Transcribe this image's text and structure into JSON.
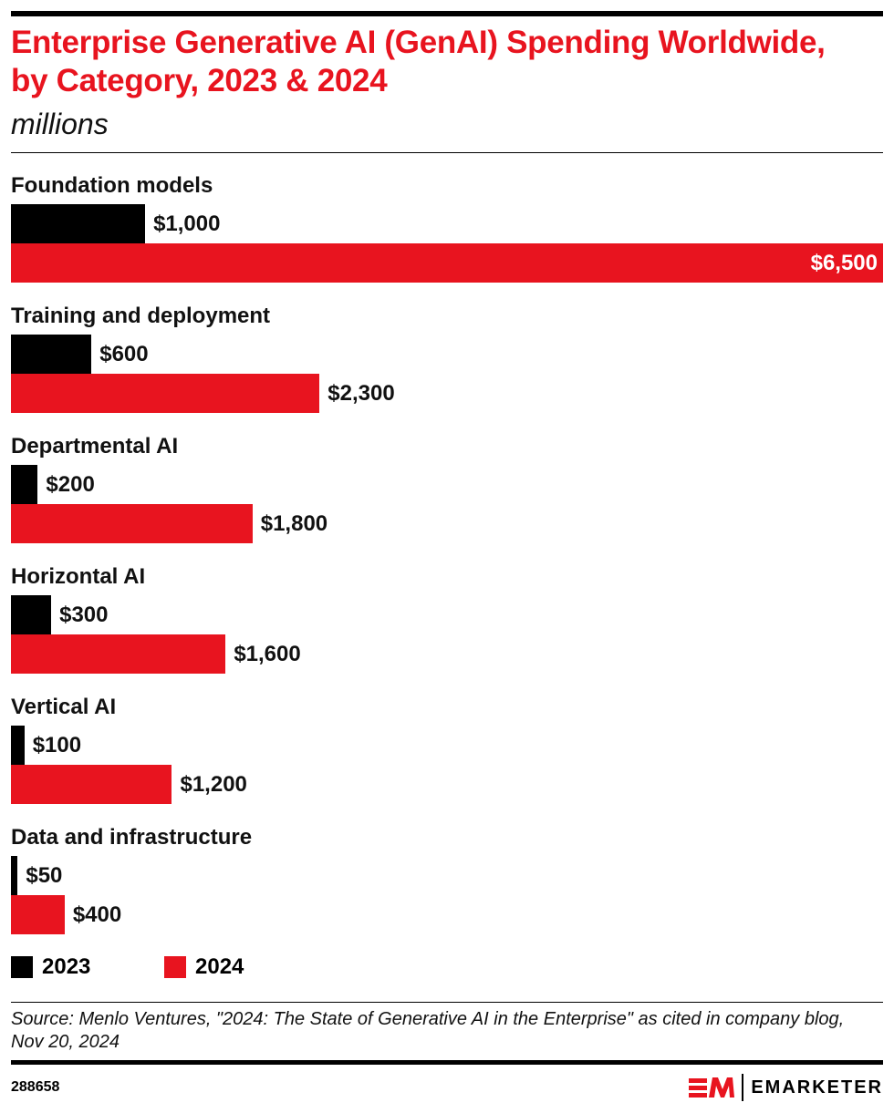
{
  "chart_data": {
    "type": "bar",
    "orientation": "horizontal",
    "title": "Enterprise Generative AI (GenAI) Spending Worldwide, by Category, 2023 & 2024",
    "subtitle": "millions",
    "categories": [
      "Foundation models",
      "Training and deployment",
      "Departmental AI",
      "Horizontal AI",
      "Vertical AI",
      "Data and infrastructure"
    ],
    "series": [
      {
        "name": "2023",
        "color": "#000000",
        "values": [
          1000,
          600,
          200,
          300,
          100,
          50
        ],
        "labels": [
          "$1,000",
          "$600",
          "$200",
          "$300",
          "$100",
          "$50"
        ]
      },
      {
        "name": "2024",
        "color": "#e8141f",
        "values": [
          6500,
          2300,
          1800,
          1600,
          1200,
          400
        ],
        "labels": [
          "$6,500",
          "$2,300",
          "$1,800",
          "$1,600",
          "$1,200",
          "$400"
        ]
      }
    ],
    "xlim": [
      0,
      6500
    ],
    "grid": false,
    "legend": "bottom-left"
  },
  "footer": {
    "source": "Source: Menlo Ventures, \"2024: The State of Generative AI in the Enterprise\" as cited in company blog, Nov 20, 2024",
    "chart_id": "288658",
    "brand": "EMARKETER"
  }
}
